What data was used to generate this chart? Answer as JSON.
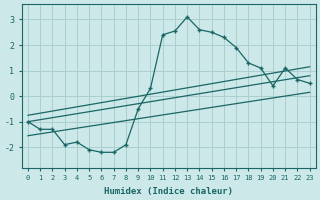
{
  "xlabel": "Humidex (Indice chaleur)",
  "ylabel": "",
  "bg_color": "#cce8e8",
  "grid_color": "#aacfcf",
  "line_color": "#1a6666",
  "xlim": [
    -0.5,
    23.5
  ],
  "ylim": [
    -2.8,
    3.6
  ],
  "xticks": [
    0,
    1,
    2,
    3,
    4,
    5,
    6,
    7,
    8,
    9,
    10,
    11,
    12,
    13,
    14,
    15,
    16,
    17,
    18,
    19,
    20,
    21,
    22,
    23
  ],
  "yticks": [
    -2,
    -1,
    0,
    1,
    2,
    3
  ],
  "main_x": [
    0,
    1,
    2,
    3,
    4,
    5,
    6,
    7,
    8,
    9,
    10,
    11,
    12,
    13,
    14,
    15,
    16,
    17,
    18,
    19,
    20,
    21,
    22,
    23
  ],
  "main_y": [
    -1.0,
    -1.3,
    -1.3,
    -1.9,
    -1.8,
    -2.1,
    -2.2,
    -2.2,
    -1.9,
    -0.5,
    0.3,
    2.4,
    2.55,
    3.1,
    2.6,
    2.5,
    2.3,
    1.9,
    1.3,
    1.1,
    0.4,
    1.1,
    0.65,
    0.5
  ],
  "trend1_x": [
    0,
    23
  ],
  "trend1_y": [
    -0.75,
    1.15
  ],
  "trend2_x": [
    0,
    23
  ],
  "trend2_y": [
    -1.0,
    0.8
  ],
  "trend3_x": [
    0,
    23
  ],
  "trend3_y": [
    -1.55,
    0.15
  ]
}
